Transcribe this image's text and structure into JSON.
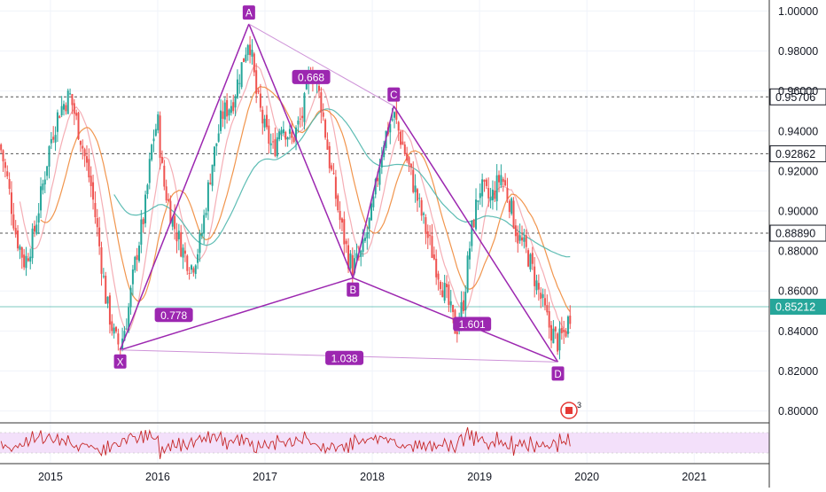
{
  "chart_data": {
    "type": "candlestick",
    "x_ticks": [
      "2015",
      "2016",
      "2017",
      "2018",
      "2019",
      "2020",
      "2021"
    ],
    "y_ticks": [
      "1.00000",
      "0.98000",
      "0.96000",
      "0.94000",
      "0.92000",
      "0.90000",
      "0.88000",
      "0.86000",
      "0.84000",
      "0.82000",
      "0.80000"
    ],
    "ylim": [
      0.7945,
      1.0055
    ],
    "xlim": [
      2014.53,
      2021.7
    ],
    "grid": true,
    "horizontal_levels": [
      {
        "label": "0.95706",
        "value": 0.95706,
        "style": "dashed"
      },
      {
        "label": "0.92862",
        "value": 0.92862,
        "style": "dashed"
      },
      {
        "label": "0.88890",
        "value": 0.8889,
        "style": "dashed"
      },
      {
        "label": "0.85212",
        "value": 0.85212,
        "style": "current",
        "color": "#26a69a"
      }
    ],
    "harmonic_pattern": {
      "color": "#9c27b0",
      "points": [
        {
          "name": "X",
          "x": 2015.65,
          "y": 0.8305
        },
        {
          "name": "A",
          "x": 2016.85,
          "y": 0.9935
        },
        {
          "name": "B",
          "x": 2017.82,
          "y": 0.8665
        },
        {
          "name": "C",
          "x": 2018.2,
          "y": 0.9525
        },
        {
          "name": "D",
          "x": 2019.73,
          "y": 0.8245
        }
      ],
      "ratios": [
        {
          "label": "0.668",
          "x": 2017.43,
          "y": 0.967
        },
        {
          "label": "0.778",
          "x": 2016.15,
          "y": 0.848
        },
        {
          "label": "1.601",
          "x": 2018.93,
          "y": 0.8435
        },
        {
          "label": "1.038",
          "x": 2017.74,
          "y": 0.8265
        }
      ]
    },
    "price_path": [
      {
        "x": 2014.53,
        "y": 0.933
      },
      {
        "x": 2014.6,
        "y": 0.915
      },
      {
        "x": 2014.68,
        "y": 0.888
      },
      {
        "x": 2014.76,
        "y": 0.874
      },
      {
        "x": 2014.84,
        "y": 0.887
      },
      {
        "x": 2014.92,
        "y": 0.91
      },
      {
        "x": 2015.0,
        "y": 0.935
      },
      {
        "x": 2015.08,
        "y": 0.95
      },
      {
        "x": 2015.18,
        "y": 0.958
      },
      {
        "x": 2015.28,
        "y": 0.937
      },
      {
        "x": 2015.38,
        "y": 0.912
      },
      {
        "x": 2015.45,
        "y": 0.885
      },
      {
        "x": 2015.52,
        "y": 0.855
      },
      {
        "x": 2015.6,
        "y": 0.836
      },
      {
        "x": 2015.65,
        "y": 0.832
      },
      {
        "x": 2015.72,
        "y": 0.848
      },
      {
        "x": 2015.8,
        "y": 0.878
      },
      {
        "x": 2015.88,
        "y": 0.9
      },
      {
        "x": 2015.95,
        "y": 0.935
      },
      {
        "x": 2016.0,
        "y": 0.945
      },
      {
        "x": 2016.05,
        "y": 0.915
      },
      {
        "x": 2016.15,
        "y": 0.893
      },
      {
        "x": 2016.25,
        "y": 0.878
      },
      {
        "x": 2016.32,
        "y": 0.872
      },
      {
        "x": 2016.4,
        "y": 0.885
      },
      {
        "x": 2016.5,
        "y": 0.922
      },
      {
        "x": 2016.6,
        "y": 0.948
      },
      {
        "x": 2016.7,
        "y": 0.955
      },
      {
        "x": 2016.78,
        "y": 0.972
      },
      {
        "x": 2016.85,
        "y": 0.988
      },
      {
        "x": 2016.92,
        "y": 0.958
      },
      {
        "x": 2017.0,
        "y": 0.94
      },
      {
        "x": 2017.08,
        "y": 0.93
      },
      {
        "x": 2017.15,
        "y": 0.945
      },
      {
        "x": 2017.25,
        "y": 0.935
      },
      {
        "x": 2017.35,
        "y": 0.948
      },
      {
        "x": 2017.43,
        "y": 0.972
      },
      {
        "x": 2017.52,
        "y": 0.955
      },
      {
        "x": 2017.6,
        "y": 0.925
      },
      {
        "x": 2017.7,
        "y": 0.895
      },
      {
        "x": 2017.78,
        "y": 0.876
      },
      {
        "x": 2017.82,
        "y": 0.872
      },
      {
        "x": 2017.9,
        "y": 0.878
      },
      {
        "x": 2018.0,
        "y": 0.9
      },
      {
        "x": 2018.1,
        "y": 0.935
      },
      {
        "x": 2018.2,
        "y": 0.948
      },
      {
        "x": 2018.3,
        "y": 0.93
      },
      {
        "x": 2018.4,
        "y": 0.91
      },
      {
        "x": 2018.5,
        "y": 0.89
      },
      {
        "x": 2018.6,
        "y": 0.872
      },
      {
        "x": 2018.7,
        "y": 0.855
      },
      {
        "x": 2018.78,
        "y": 0.84
      },
      {
        "x": 2018.85,
        "y": 0.855
      },
      {
        "x": 2018.92,
        "y": 0.888
      },
      {
        "x": 2019.0,
        "y": 0.912
      },
      {
        "x": 2019.1,
        "y": 0.905
      },
      {
        "x": 2019.2,
        "y": 0.918
      },
      {
        "x": 2019.28,
        "y": 0.905
      },
      {
        "x": 2019.35,
        "y": 0.888
      },
      {
        "x": 2019.45,
        "y": 0.878
      },
      {
        "x": 2019.55,
        "y": 0.86
      },
      {
        "x": 2019.65,
        "y": 0.842
      },
      {
        "x": 2019.73,
        "y": 0.834
      },
      {
        "x": 2019.8,
        "y": 0.84
      },
      {
        "x": 2019.86,
        "y": 0.852
      }
    ],
    "moving_averages": [
      {
        "color": "#f4a5ad",
        "period": "fast"
      },
      {
        "color": "#ef8a3a",
        "period": "medium"
      },
      {
        "color": "#4db6ac",
        "period": "slow"
      }
    ],
    "lower_pane": {
      "type": "oscillator",
      "band_color": "#f3e0fa",
      "line_color": "#c62828"
    },
    "marker_badge": "3"
  }
}
